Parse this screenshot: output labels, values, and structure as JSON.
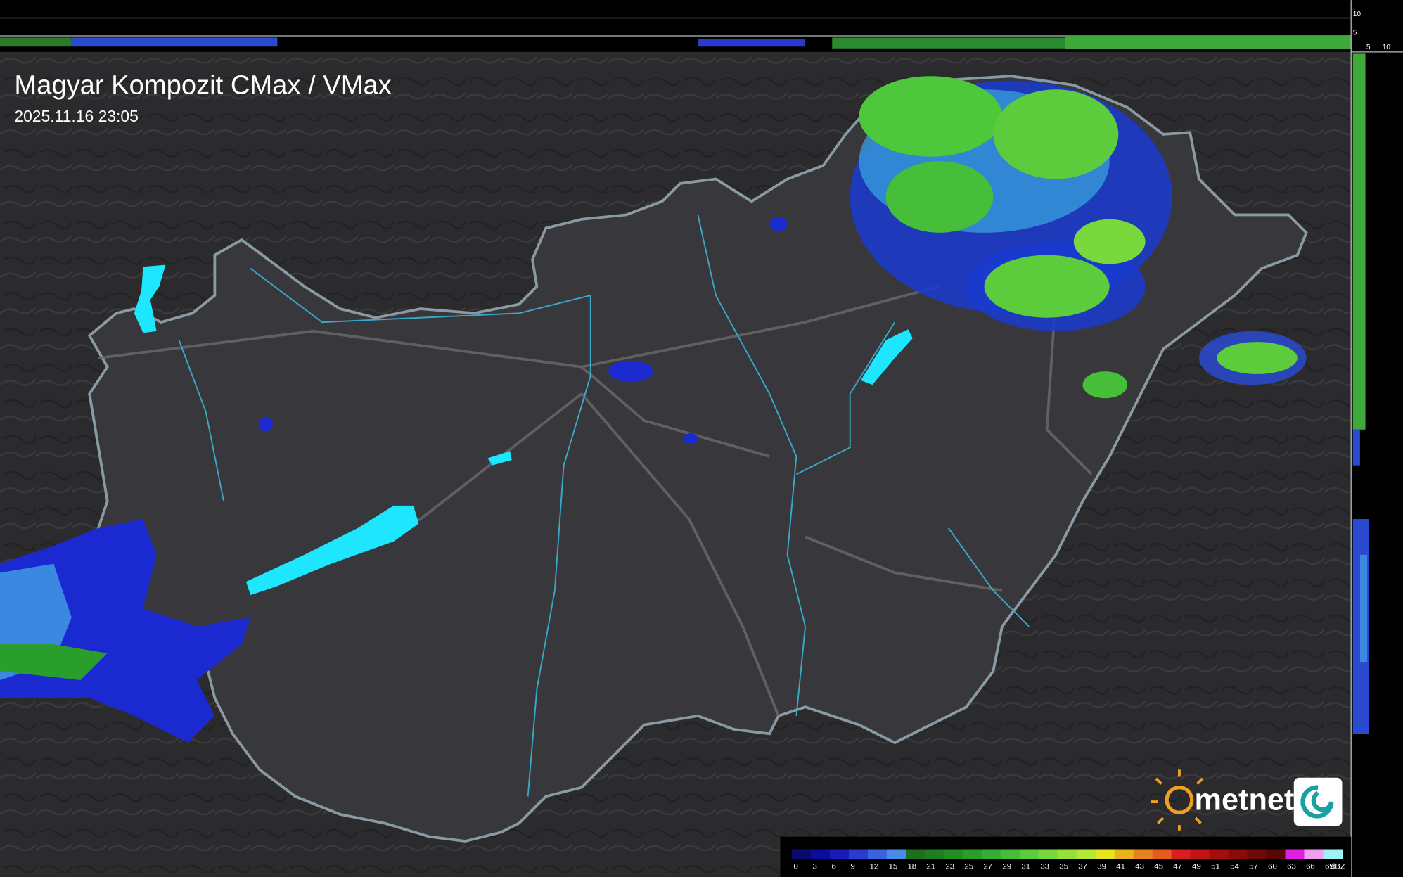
{
  "header": {
    "title": "Magyar Kompozit CMax / VMax",
    "timestamp": "2025.11.16 23:05"
  },
  "profile_axis": {
    "top_labels": [
      "10",
      "5"
    ],
    "bottom_labels": [
      "5",
      "10"
    ]
  },
  "logo": {
    "text": "metnet"
  },
  "legend": {
    "labels": [
      "0",
      "3",
      "6",
      "9",
      "12",
      "15",
      "18",
      "21",
      "23",
      "25",
      "27",
      "29",
      "31",
      "33",
      "35",
      "37",
      "39",
      "41",
      "43",
      "45",
      "47",
      "49",
      "51",
      "54",
      "57",
      "60",
      "63",
      "66",
      "69"
    ],
    "colors": [
      "#0a0a6e",
      "#0c0c9a",
      "#1a1ab8",
      "#2a3ad0",
      "#3a62de",
      "#4a8ae8",
      "#1e6e1e",
      "#1f7e1f",
      "#238e23",
      "#2a9e2a",
      "#34ae34",
      "#46be3a",
      "#5ccc3c",
      "#78d83c",
      "#96e03a",
      "#b4e832",
      "#e6e61e",
      "#e8b41e",
      "#e8821e",
      "#e85a1e",
      "#d81e1e",
      "#c01414",
      "#a40e0e",
      "#8c0a0a",
      "#700808",
      "#580606",
      "#e020e0",
      "#f0a0f0",
      "#a0f0f8"
    ],
    "unit": "dBZ"
  }
}
